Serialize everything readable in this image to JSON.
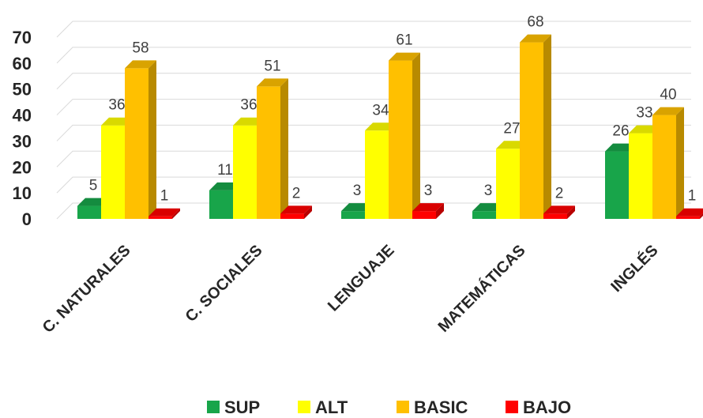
{
  "chart_data": {
    "type": "bar",
    "title": "",
    "xlabel": "",
    "ylabel": "",
    "categories": [
      "C. NATURALES",
      "C. SOCIALES",
      "LENGUAJE",
      "MATEMÁTICAS",
      "INGLÉS"
    ],
    "series": [
      {
        "name": "SUP",
        "color": "#18a54a",
        "values": [
          5,
          11,
          3,
          3,
          26
        ]
      },
      {
        "name": "ALT",
        "color": "#ffff00",
        "values": [
          36,
          36,
          34,
          27,
          33
        ]
      },
      {
        "name": "BASIC",
        "color": "#ffc000",
        "values": [
          58,
          51,
          61,
          68,
          40
        ]
      },
      {
        "name": "BAJO",
        "color": "#ff0000",
        "values": [
          1,
          2,
          3,
          2,
          1
        ]
      }
    ],
    "ylim": [
      0,
      70
    ],
    "yticks": [
      0,
      10,
      20,
      30,
      40,
      50,
      60,
      70
    ],
    "grid": true,
    "legend": "bottom",
    "data_labels": true
  }
}
